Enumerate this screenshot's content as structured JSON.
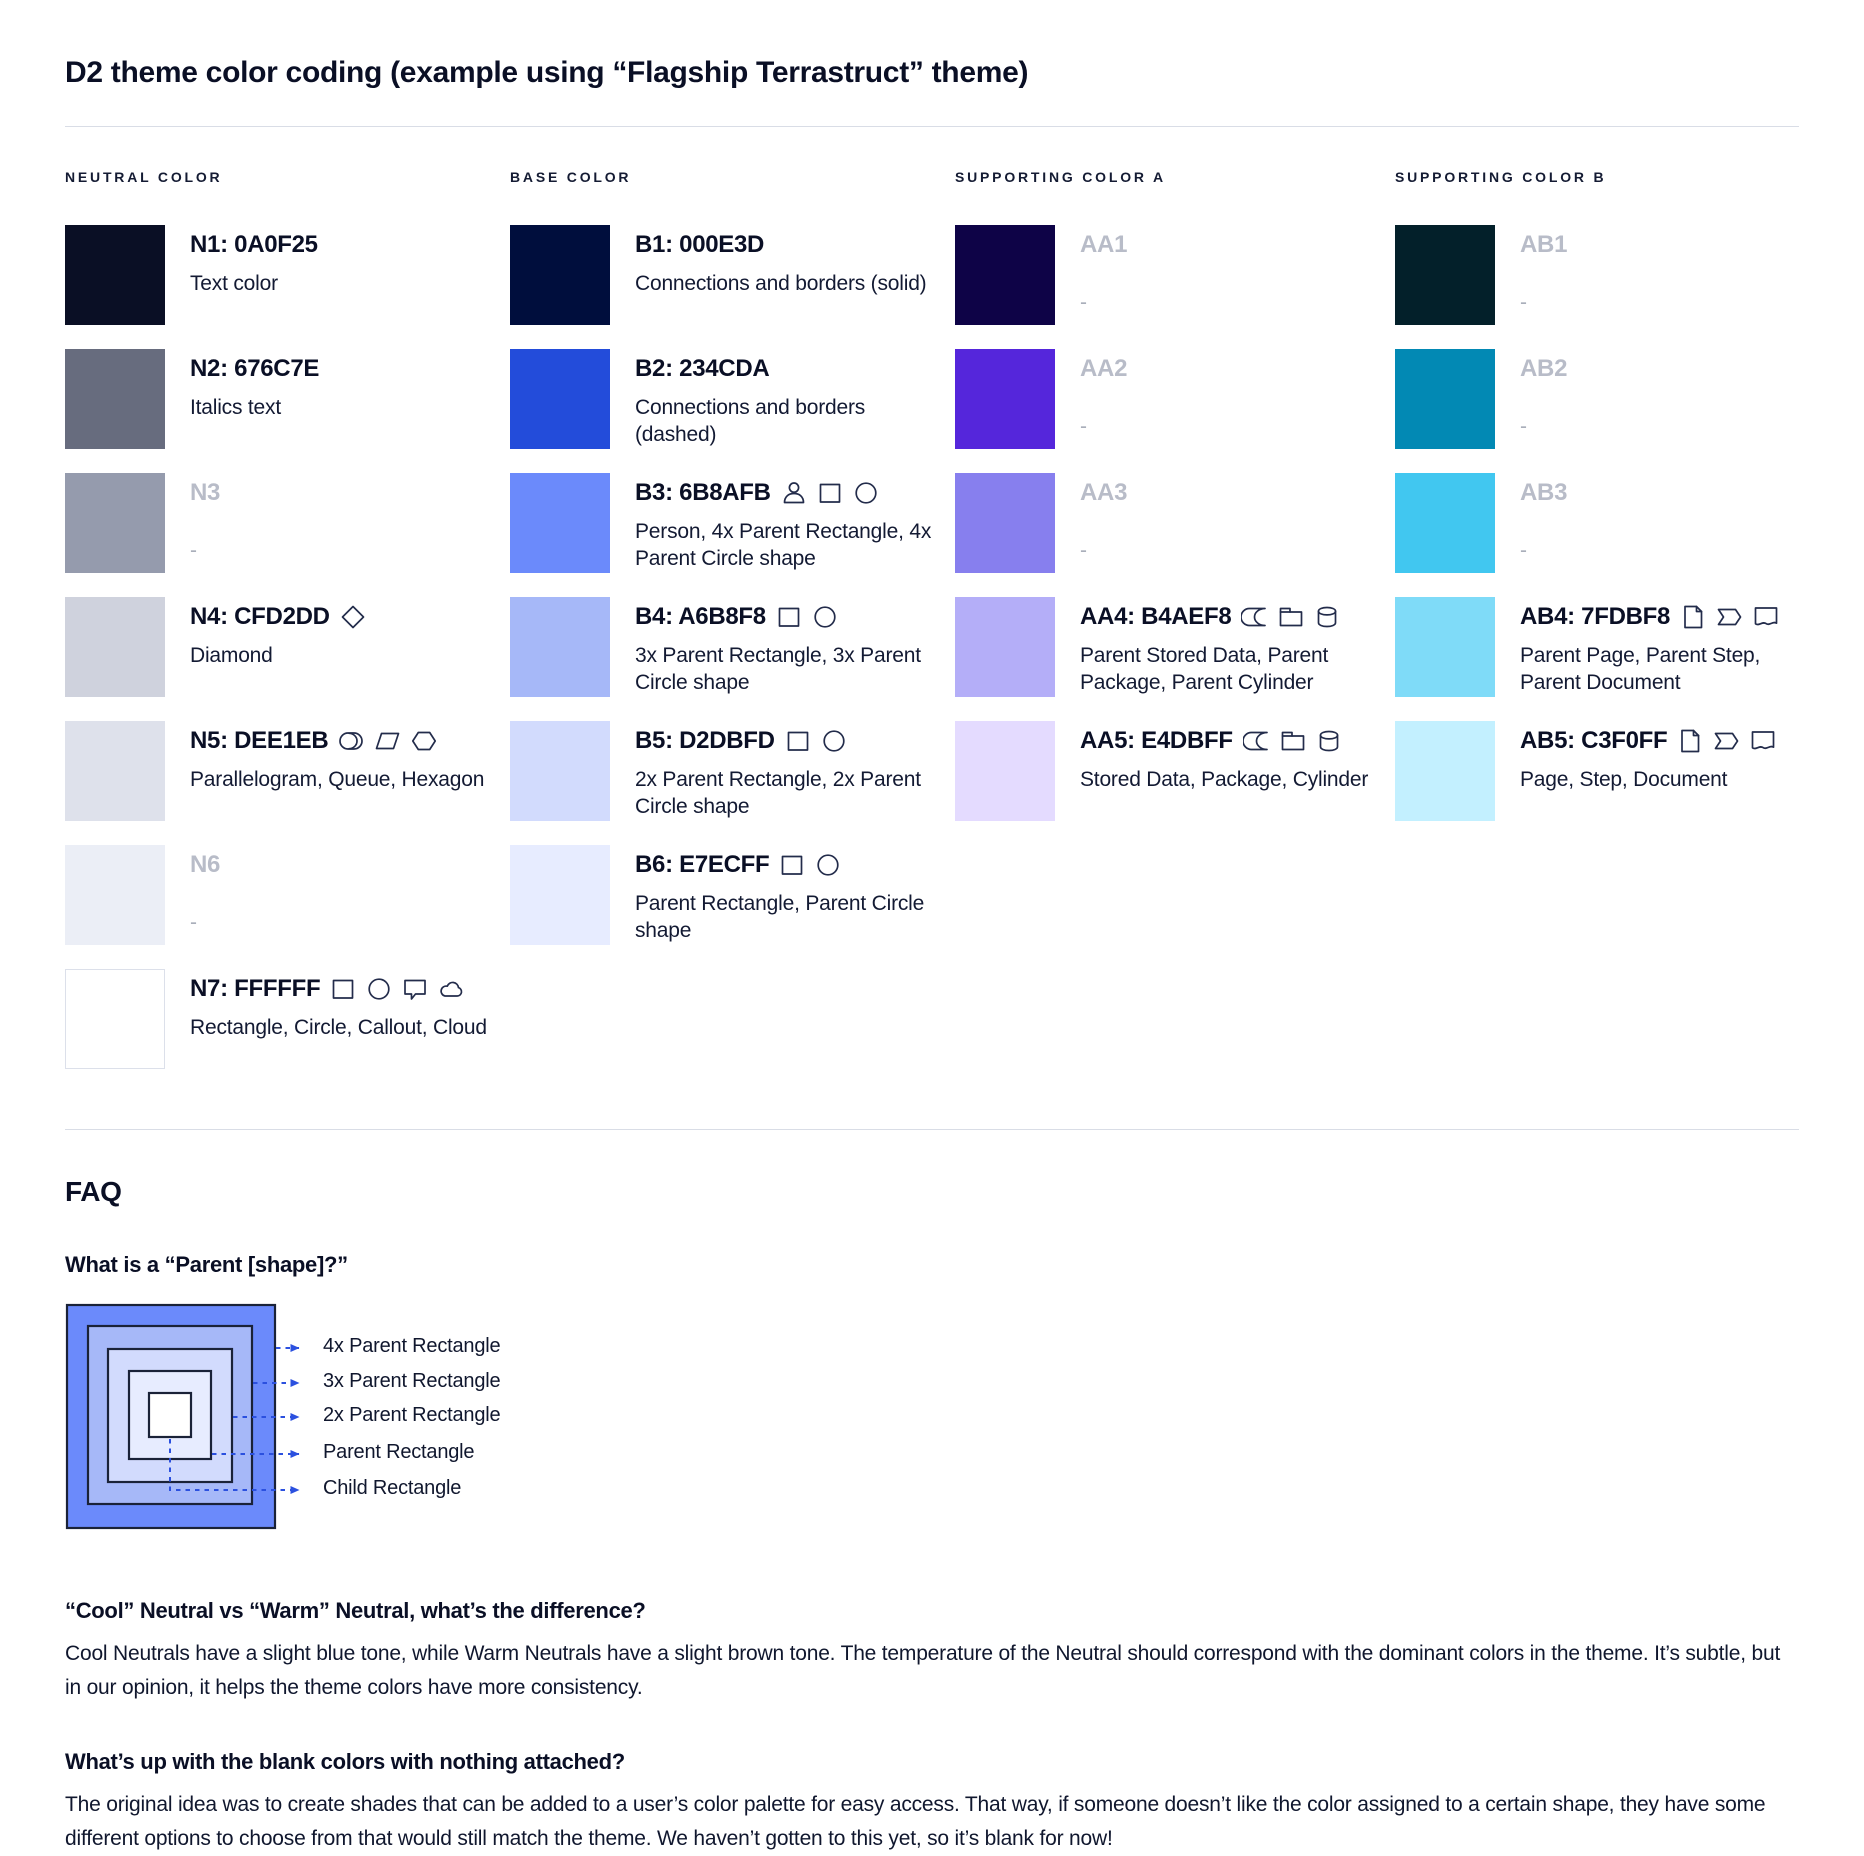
{
  "page": {
    "title": "D2 theme color coding (example using “Flagship Terrastruct” theme)"
  },
  "palette": {
    "columns": [
      {
        "header": "NEUTRAL COLOR",
        "rows": [
          {
            "id": "N1",
            "label": "N1: 0A0F25",
            "swatch": "#0A0F25",
            "desc": "Text color",
            "icons": []
          },
          {
            "id": "N2",
            "label": "N2: 676C7E",
            "swatch": "#676C7E",
            "desc": "Italics text",
            "icons": []
          },
          {
            "id": "N3",
            "label": "N3",
            "swatch": "#959BAD",
            "desc": "-",
            "blank": true,
            "icons": []
          },
          {
            "id": "N4",
            "label": "N4: CFD2DD",
            "swatch": "#CFD2DD",
            "desc": "Diamond",
            "icons": [
              "diamond"
            ]
          },
          {
            "id": "N5",
            "label": "N5: DEE1EB",
            "swatch": "#DEE1EB",
            "desc": "Parallelogram, Queue, Hexagon",
            "icons": [
              "queue",
              "parallelogram",
              "hexagon"
            ]
          },
          {
            "id": "N6",
            "label": "N6",
            "swatch": "#EBEEF6",
            "desc": "-",
            "blank": true,
            "icons": []
          },
          {
            "id": "N7",
            "label": "N7: FFFFFF",
            "swatch": "#FFFFFF",
            "swatch_border": true,
            "desc": "Rectangle, Circle, Callout, Cloud",
            "icons": [
              "rectangle",
              "circle",
              "callout",
              "cloud"
            ]
          }
        ]
      },
      {
        "header": "BASE COLOR",
        "rows": [
          {
            "id": "B1",
            "label": "B1: 000E3D",
            "swatch": "#000E3D",
            "desc": "Connections and borders (solid)",
            "icons": []
          },
          {
            "id": "B2",
            "label": "B2: 234CDA",
            "swatch": "#234CDA",
            "desc": "Connections and borders (dashed)",
            "icons": []
          },
          {
            "id": "B3",
            "label": "B3: 6B8AFB",
            "swatch": "#6B8AFB",
            "desc": "Person, 4x Parent Rectangle, 4x Parent Circle shape",
            "icons": [
              "person",
              "rectangle",
              "circle"
            ]
          },
          {
            "id": "B4",
            "label": "B4: A6B8F8",
            "swatch": "#A6B8F8",
            "desc": "3x Parent Rectangle, 3x Parent Circle shape",
            "icons": [
              "rectangle",
              "circle"
            ]
          },
          {
            "id": "B5",
            "label": "B5: D2DBFD",
            "swatch": "#D2DBFD",
            "desc": "2x Parent Rectangle, 2x Parent Circle shape",
            "icons": [
              "rectangle",
              "circle"
            ]
          },
          {
            "id": "B6",
            "label": "B6: E7ECFF",
            "swatch": "#E7ECFF",
            "desc": "Parent Rectangle, Parent Circle shape",
            "icons": [
              "rectangle",
              "circle"
            ]
          }
        ]
      },
      {
        "header": "SUPPORTING COLOR A",
        "rows": [
          {
            "id": "AA1",
            "label": "AA1",
            "swatch": "#0E0347",
            "desc": "-",
            "blank": true,
            "icons": []
          },
          {
            "id": "AA2",
            "label": "AA2",
            "swatch": "#5526DB",
            "desc": "-",
            "blank": true,
            "icons": []
          },
          {
            "id": "AA3",
            "label": "AA3",
            "swatch": "#877FEE",
            "desc": "-",
            "blank": true,
            "icons": []
          },
          {
            "id": "AA4",
            "label": "AA4: B4AEF8",
            "swatch": "#B4AEF8",
            "desc": "Parent Stored Data, Parent Package,  Parent Cylinder",
            "icons": [
              "stored-data",
              "package",
              "cylinder"
            ]
          },
          {
            "id": "AA5",
            "label": "AA5: E4DBFF",
            "swatch": "#E4DBFF",
            "desc": "Stored Data, Package, Cylinder",
            "icons": [
              "stored-data",
              "package",
              "cylinder"
            ]
          }
        ]
      },
      {
        "header": "SUPPORTING COLOR B",
        "rows": [
          {
            "id": "AB1",
            "label": "AB1",
            "swatch": "#03202A",
            "desc": "-",
            "blank": true,
            "icons": []
          },
          {
            "id": "AB2",
            "label": "AB2",
            "swatch": "#0289B4",
            "desc": "-",
            "blank": true,
            "icons": []
          },
          {
            "id": "AB3",
            "label": "AB3",
            "swatch": "#41C7F0",
            "desc": "-",
            "blank": true,
            "icons": []
          },
          {
            "id": "AB4",
            "label": "AB4: 7FDBF8",
            "swatch": "#7FDBF8",
            "desc": "Parent Page, Parent Step, Parent Document",
            "icons": [
              "page",
              "step",
              "document"
            ]
          },
          {
            "id": "AB5",
            "label": "AB5: C3F0FF",
            "swatch": "#C3F0FF",
            "desc": "Page, Step, Document",
            "icons": [
              "page",
              "step",
              "document"
            ]
          }
        ]
      }
    ]
  },
  "faq": {
    "heading": "FAQ",
    "questions": [
      {
        "q": "What is a “Parent [shape]?”",
        "diagram": {
          "labels": [
            "4x Parent Rectangle",
            "3x Parent Rectangle",
            "2x Parent Rectangle",
            "Parent Rectangle",
            "Child Rectangle"
          ],
          "colors": [
            "#6B8AFB",
            "#A6B8F8",
            "#D2DBFD",
            "#E7ECFF",
            "#FFFFFF"
          ],
          "arrow_color": "#2B50DF",
          "border_color": "#1A2238"
        }
      },
      {
        "q": "“Cool” Neutral vs “Warm” Neutral, what’s the difference?",
        "a": "Cool Neutrals have a slight blue tone, while Warm Neutrals have a slight brown tone. The temperature of the Neutral should correspond with the dominant colors in the theme. It’s subtle, but in our opinion, it helps the theme colors have more consistency."
      },
      {
        "q": "What’s up with the blank colors with nothing attached?",
        "a": "The original idea was to create shades that can be added to a user’s color palette for easy access. That way, if someone doesn’t like the color assigned to a certain shape, they have some different options to choose from that would still match the theme. We haven’t gotten to this yet, so it’s blank for now!"
      }
    ]
  }
}
